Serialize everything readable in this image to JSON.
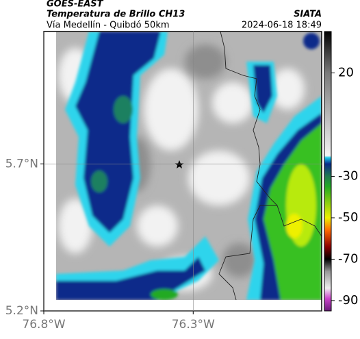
{
  "header": {
    "source": "GOES-EAST",
    "title": "Temperatura de Brillo CH13",
    "subtitle": "Vía Medellín - Quibdó 50km",
    "agency": "SIATA",
    "datetime": "2024-06-18 18:49"
  },
  "map": {
    "lon_lim": [
      -76.8,
      -75.87
    ],
    "lat_lim": [
      5.2,
      6.15
    ],
    "lon_ticks": [
      {
        "value": -76.8,
        "label": "76.8°W"
      },
      {
        "value": -76.3,
        "label": "76.3°W"
      }
    ],
    "lat_ticks": [
      {
        "value": 5.7,
        "label": "5.7°N"
      },
      {
        "value": 5.2,
        "label": "5.2°N"
      }
    ]
  },
  "colorbar": {
    "lim": [
      -95,
      40
    ],
    "ticks": [
      20,
      -30,
      -50,
      -70,
      -90
    ],
    "stops": [
      {
        "value": 40,
        "color": "#000000"
      },
      {
        "value": 20,
        "color": "#7a7a7a"
      },
      {
        "value": -20,
        "color": "#f4f4f4"
      },
      {
        "value": -21,
        "color": "#18c8e8"
      },
      {
        "value": -24,
        "color": "#0a2a8a"
      },
      {
        "value": -30,
        "color": "#1f7a50"
      },
      {
        "value": -35,
        "color": "#22aa22"
      },
      {
        "value": -50,
        "color": "#eef000"
      },
      {
        "value": -56,
        "color": "#ff6a00"
      },
      {
        "value": -64,
        "color": "#8b0000"
      },
      {
        "value": -70,
        "color": "#000000"
      },
      {
        "value": -76,
        "color": "#9a9a9a"
      },
      {
        "value": -84,
        "color": "#eeeeee"
      },
      {
        "value": -89,
        "color": "#cc44cc"
      },
      {
        "value": -95,
        "color": "#6a1a7a"
      }
    ]
  }
}
